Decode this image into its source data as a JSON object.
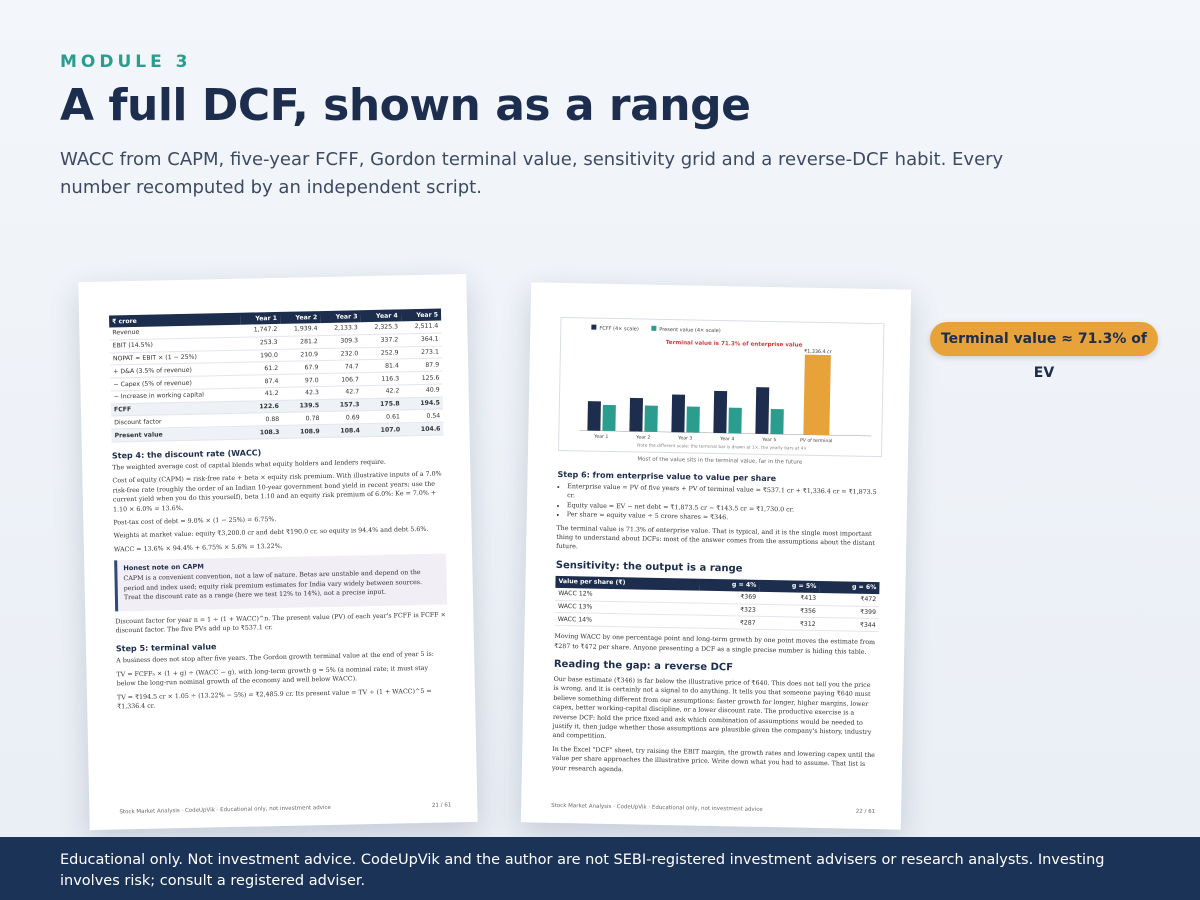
{
  "header": {
    "eyebrow": "MODULE 3",
    "title": "A full DCF, shown as a range",
    "subtitle": "WACC from CAPM, five-year FCFF, Gordon terminal value, sensitivity grid and a reverse-DCF habit. Every number recomputed by an independent script."
  },
  "badge": {
    "label": "Terminal value ≈ 71.3% of EV",
    "color": "#e8a23a"
  },
  "left_page": {
    "table": {
      "headers": [
        "₹ crore",
        "Year 1",
        "Year 2",
        "Year 3",
        "Year 4",
        "Year 5"
      ],
      "rows": [
        [
          "Revenue",
          "1,747.2",
          "1,939.4",
          "2,133.3",
          "2,325.3",
          "2,511.4"
        ],
        [
          "EBIT (14.5%)",
          "253.3",
          "281.2",
          "309.3",
          "337.2",
          "364.1"
        ],
        [
          "NOPAT = EBIT × (1 − 25%)",
          "190.0",
          "210.9",
          "232.0",
          "252.9",
          "273.1"
        ],
        [
          "+ D&A (3.5% of revenue)",
          "61.2",
          "67.9",
          "74.7",
          "81.4",
          "87.9"
        ],
        [
          "− Capex (5% of revenue)",
          "87.4",
          "97.0",
          "106.7",
          "116.3",
          "125.6"
        ],
        [
          "− Increase in working capital",
          "41.2",
          "42.3",
          "42.7",
          "42.2",
          "40.9"
        ],
        [
          "FCFF",
          "122.6",
          "139.5",
          "157.3",
          "175.8",
          "194.5"
        ],
        [
          "Discount factor",
          "0.88",
          "0.78",
          "0.69",
          "0.61",
          "0.54"
        ],
        [
          "Present value",
          "108.3",
          "108.9",
          "108.4",
          "107.0",
          "104.6"
        ]
      ]
    },
    "step4_heading": "Step 4: the discount rate (WACC)",
    "step4_intro": "The weighted average cost of capital blends what equity holders and lenders require.",
    "capm_text": "Cost of equity (CAPM) = risk-free rate + beta × equity risk premium. With illustrative inputs of a 7.0% risk-free rate (roughly the order of an Indian 10-year government bond yield in recent years; use the current yield when you do this yourself), beta 1.10 and an equity risk premium of 6.0%: Ke = 7.0% + 1.10 × 6.0% = 13.6%.",
    "kd_text": "Post-tax cost of debt = 9.0% × (1 − 25%) = 6.75%.",
    "weights_text": "Weights at market value: equity ₹3,200.0 cr and debt ₹190.0 cr, so equity is 94.4% and debt 5.6%.",
    "wacc_text": "WACC = 13.6% × 94.4% + 6.75% × 5.6% = 13.22%.",
    "note_title": "Honest note on CAPM",
    "note_text": "CAPM is a convenient convention, not a law of nature. Betas are unstable and depend on the period and index used; equity risk premium estimates for India vary widely between sources. Treat the discount rate as a range (here we test 12% to 14%), not a precise input.",
    "discount_text": "Discount factor for year n = 1 ÷ (1 + WACC)^n. The present value (PV) of each year's FCFF is FCFF × discount factor. The five PVs add up to ₹537.1 cr.",
    "step5_heading": "Step 5: terminal value",
    "step5_intro": "A business does not stop after five years. The Gordon growth terminal value at the end of year 5 is:",
    "tv_formula": "TV = FCFF₅ × (1 + g) ÷ (WACC − g), with long-term growth g = 5% (a nominal rate; it must stay below the long-run nominal growth of the economy and well below WACC).",
    "tv_calc": "TV = ₹194.5 cr × 1.05 ÷ (13.22% − 5%) = ₹2,485.9 cr. Its present value = TV ÷ (1 + WACC)^5 = ₹1,336.4 cr.",
    "footer_left": "Stock Market Analysis · CodeUpVik · Educational only, not investment advice",
    "footer_right": "21 / 61"
  },
  "right_page": {
    "chart_legend_fcff": "FCFF (4× scale)",
    "chart_legend_pv": "Present value (4× scale)",
    "chart_title": "Terminal value is 71.3% of enterprise value",
    "chart_note": "Note the different scale: the terminal bar is drawn at 1×, the yearly bars at 4×",
    "chart_caption": "Most of the value sits in the terminal value, far in the future",
    "chart_data": {
      "type": "bar",
      "title": "Terminal value is 71.3% of enterprise value",
      "categories": [
        "Year 1",
        "Year 2",
        "Year 3",
        "Year 4",
        "Year 5",
        "PV of terminal"
      ],
      "series": [
        {
          "name": "FCFF (4× scale)",
          "color": "#1c2d4e",
          "values": [
            122.6,
            139.5,
            157.3,
            175.8,
            194.5,
            null
          ]
        },
        {
          "name": "Present value (4× scale)",
          "color": "#2a9d8f",
          "values": [
            108.3,
            108.9,
            108.4,
            107.0,
            104.6,
            null
          ]
        },
        {
          "name": "",
          "color": "#e8a23a",
          "values": [
            null,
            null,
            null,
            null,
            null,
            1336.4
          ]
        }
      ],
      "data_labels": {
        "PV of terminal": "₹1,336.4 cr"
      },
      "yearly_scale": 4,
      "grid": false,
      "legend": "top-left"
    },
    "step6_heading": "Step 6: from enterprise value to value per share",
    "bullets": [
      "Enterprise value = PV of five years + PV of terminal value = ₹537.1 cr + ₹1,336.4 cr = ₹1,873.5 cr.",
      "Equity value = EV − net debt = ₹1,873.5 cr − ₹143.5 cr = ₹1,730.0 cr.",
      "Per share = equity value ÷ 5 crore shares = ₹346."
    ],
    "tv_share_text": "The terminal value is 71.3% of enterprise value. That is typical, and it is the single most important thing to understand about DCFs: most of the answer comes from the assumptions about the distant future.",
    "sens_heading": "Sensitivity: the output is a range",
    "sens_table": {
      "headers": [
        "Value per share (₹)",
        "g = 4%",
        "g = 5%",
        "g = 6%"
      ],
      "rows": [
        [
          "WACC 12%",
          "₹369",
          "₹413",
          "₹472"
        ],
        [
          "WACC 13%",
          "₹323",
          "₹356",
          "₹399"
        ],
        [
          "WACC 14%",
          "₹287",
          "₹312",
          "₹344"
        ]
      ]
    },
    "sens_text": "Moving WACC by one percentage point and long-term growth by one point moves the estimate from ₹287 to ₹472 per share. Anyone presenting a DCF as a single precise number is hiding this table.",
    "gap_heading": "Reading the gap: a reverse DCF",
    "gap_text": "Our base estimate (₹346) is far below the illustrative price of ₹640. This does not tell you the price is wrong, and it is certainly not a signal to do anything. It tells you that someone paying ₹640 must believe something different from our assumptions: faster growth for longer, higher margins, lower capex, better working-capital discipline, or a lower discount rate. The productive exercise is a reverse DCF: hold the price fixed and ask which combination of assumptions would be needed to justify it, then judge whether those assumptions are plausible given the company's history, industry and competition.",
    "excel_text": "In the Excel \"DCF\" sheet, try raising the EBIT margin, the growth rates and lowering capex until the value per share approaches the illustrative price. Write down what you had to assume. That list is your research agenda.",
    "footer_left": "Stock Market Analysis · CodeUpVik · Educational only, not investment advice",
    "footer_right": "22 / 61"
  },
  "disclaimer": "Educational only. Not investment advice. CodeUpVik and the author are not SEBI-registered investment advisers or research analysts. Investing involves risk; consult a registered adviser."
}
